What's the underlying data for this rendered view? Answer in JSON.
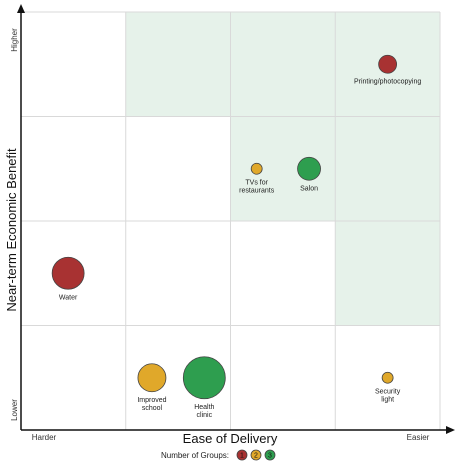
{
  "chart_data": {
    "type": "scatter",
    "title": "",
    "xlabel": "Ease of Delivery",
    "ylabel": "Near-term Economic Benefit",
    "x_axis": {
      "low_label": "Harder",
      "high_label": "Easier",
      "range": [
        0,
        4
      ]
    },
    "y_axis": {
      "low_label": "Lower",
      "high_label": "Higher",
      "range": [
        0,
        4
      ]
    },
    "grid": true,
    "shaded_cells": [
      {
        "col": 1,
        "row": 3
      },
      {
        "col": 2,
        "row": 3
      },
      {
        "col": 3,
        "row": 3
      },
      {
        "col": 2,
        "row": 2
      },
      {
        "col": 3,
        "row": 2
      },
      {
        "col": 3,
        "row": 1
      }
    ],
    "shade_color": "#e6f2ea",
    "points": [
      {
        "name": "Printing/photocopying",
        "label_lines": [
          "Printing/photocopying"
        ],
        "x": 3.5,
        "y": 3.5,
        "groups": 1
      },
      {
        "name": "TVs for restaurants",
        "label_lines": [
          "TVs for",
          "restaurants"
        ],
        "x": 2.25,
        "y": 2.5,
        "groups": 2
      },
      {
        "name": "Salon",
        "label_lines": [
          "Salon"
        ],
        "x": 2.75,
        "y": 2.5,
        "groups": 3
      },
      {
        "name": "Water",
        "label_lines": [
          "Water"
        ],
        "x": 0.45,
        "y": 1.5,
        "groups": 1
      },
      {
        "name": "Improved school",
        "label_lines": [
          "Improved",
          "school"
        ],
        "x": 1.25,
        "y": 0.5,
        "groups": 2
      },
      {
        "name": "Health clinic",
        "label_lines": [
          "Health",
          "clinic"
        ],
        "x": 1.75,
        "y": 0.5,
        "groups": 3
      },
      {
        "name": "Security light",
        "label_lines": [
          "Security",
          "light"
        ],
        "x": 3.5,
        "y": 0.5,
        "groups": 2
      }
    ],
    "legend": {
      "title": "Number of Groups:",
      "placement": "bottom-center",
      "items": [
        {
          "groups": 1,
          "label": "1",
          "color": "#a83232"
        },
        {
          "groups": 2,
          "label": "2",
          "color": "#e0a82a"
        },
        {
          "groups": 3,
          "label": "3",
          "color": "#2e9e4f"
        }
      ]
    }
  }
}
